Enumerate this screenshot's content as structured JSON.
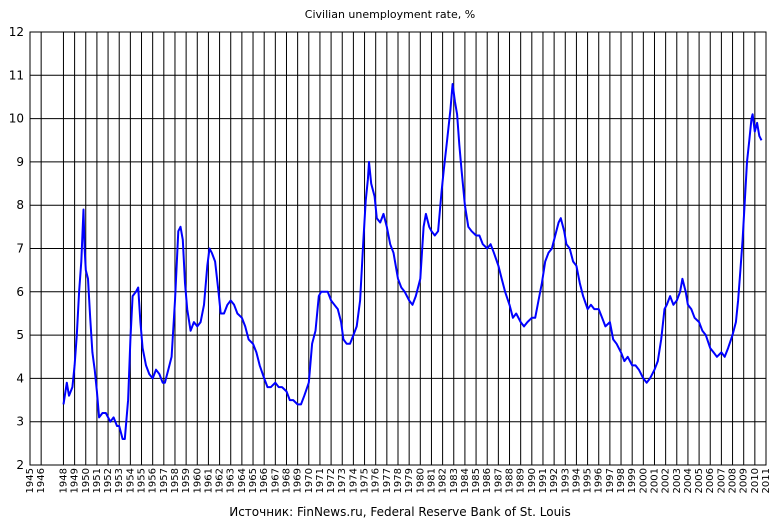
{
  "chart_data": {
    "type": "line",
    "title": "Civilian unemployment rate, %",
    "source": "Источник: FinNews.ru, Federal Reserve Bank of St. Louis",
    "xlabel": "",
    "ylabel": "",
    "x_range": [
      1945,
      2011
    ],
    "ylim": [
      2,
      12
    ],
    "y_ticks": [
      2,
      3,
      4,
      5,
      6,
      7,
      8,
      9,
      10,
      11,
      12
    ],
    "x_ticks": [
      1945,
      1946,
      1948,
      1949,
      1950,
      1951,
      1952,
      1953,
      1954,
      1955,
      1956,
      1957,
      1958,
      1959,
      1960,
      1961,
      1962,
      1963,
      1964,
      1965,
      1966,
      1967,
      1968,
      1969,
      1970,
      1971,
      1972,
      1973,
      1974,
      1975,
      1976,
      1977,
      1978,
      1979,
      1980,
      1981,
      1982,
      1983,
      1984,
      1985,
      1986,
      1987,
      1988,
      1989,
      1990,
      1991,
      1992,
      1993,
      1994,
      1995,
      1996,
      1997,
      1998,
      1999,
      2000,
      2001,
      2002,
      2003,
      2004,
      2005,
      2006,
      2007,
      2008,
      2009,
      2010,
      2011
    ],
    "x_tick_labels": [
      "1945",
      "1946",
      "1948",
      "1949",
      "1950",
      "1951",
      "1952",
      "1953",
      "1954",
      "1955",
      "1956",
      "1957",
      "1958",
      "1959",
      "1960",
      "1961",
      "1962",
      "1963",
      "1964",
      "1965",
      "1966",
      "1967",
      "1968",
      "1969",
      "1970",
      "1971",
      "1972",
      "1973",
      "1974",
      "1975",
      "1976",
      "1977",
      "1978",
      "1979",
      "1980",
      "1981",
      "1982",
      "1983",
      "1984",
      "1985",
      "1986",
      "1987",
      "1988",
      "1989",
      "1990",
      "1991",
      "1992",
      "1993",
      "1994",
      "1995",
      "1996",
      "1997",
      "1998",
      "1999",
      "2000",
      "2001",
      "2002",
      "2003",
      "2004",
      "2005",
      "2006",
      "2007",
      "2008",
      "2009",
      "2010",
      "2011"
    ],
    "grid": true,
    "line_color": "#0000ff",
    "series": [
      {
        "name": "",
        "points": [
          [
            1948.0,
            3.4
          ],
          [
            1948.3,
            3.9
          ],
          [
            1948.5,
            3.6
          ],
          [
            1948.8,
            3.8
          ],
          [
            1949.0,
            4.3
          ],
          [
            1949.2,
            5.0
          ],
          [
            1949.4,
            6.0
          ],
          [
            1949.6,
            6.7
          ],
          [
            1949.8,
            7.9
          ],
          [
            1949.9,
            7.0
          ],
          [
            1950.0,
            6.5
          ],
          [
            1950.2,
            6.3
          ],
          [
            1950.4,
            5.4
          ],
          [
            1950.6,
            4.6
          ],
          [
            1950.8,
            4.2
          ],
          [
            1951.0,
            3.7
          ],
          [
            1951.2,
            3.1
          ],
          [
            1951.5,
            3.2
          ],
          [
            1951.8,
            3.2
          ],
          [
            1952.0,
            3.1
          ],
          [
            1952.2,
            3.0
          ],
          [
            1952.5,
            3.1
          ],
          [
            1952.8,
            2.9
          ],
          [
            1953.0,
            2.9
          ],
          [
            1953.3,
            2.6
          ],
          [
            1953.5,
            2.6
          ],
          [
            1953.8,
            3.5
          ],
          [
            1954.0,
            4.9
          ],
          [
            1954.2,
            5.9
          ],
          [
            1954.5,
            6.0
          ],
          [
            1954.7,
            6.1
          ],
          [
            1954.9,
            5.3
          ],
          [
            1955.1,
            4.7
          ],
          [
            1955.4,
            4.3
          ],
          [
            1955.7,
            4.1
          ],
          [
            1956.0,
            4.0
          ],
          [
            1956.3,
            4.2
          ],
          [
            1956.6,
            4.1
          ],
          [
            1956.9,
            3.9
          ],
          [
            1957.1,
            3.9
          ],
          [
            1957.4,
            4.2
          ],
          [
            1957.7,
            4.5
          ],
          [
            1958.0,
            5.8
          ],
          [
            1958.3,
            7.4
          ],
          [
            1958.5,
            7.5
          ],
          [
            1958.7,
            7.2
          ],
          [
            1958.9,
            6.2
          ],
          [
            1959.1,
            5.6
          ],
          [
            1959.4,
            5.1
          ],
          [
            1959.7,
            5.3
          ],
          [
            1960.0,
            5.2
          ],
          [
            1960.3,
            5.3
          ],
          [
            1960.6,
            5.7
          ],
          [
            1960.9,
            6.6
          ],
          [
            1961.1,
            7.0
          ],
          [
            1961.3,
            6.9
          ],
          [
            1961.6,
            6.7
          ],
          [
            1961.9,
            6.0
          ],
          [
            1962.1,
            5.5
          ],
          [
            1962.4,
            5.5
          ],
          [
            1962.7,
            5.7
          ],
          [
            1963.0,
            5.8
          ],
          [
            1963.3,
            5.7
          ],
          [
            1963.6,
            5.5
          ],
          [
            1964.0,
            5.4
          ],
          [
            1964.3,
            5.2
          ],
          [
            1964.6,
            4.9
          ],
          [
            1965.0,
            4.8
          ],
          [
            1965.3,
            4.6
          ],
          [
            1965.6,
            4.3
          ],
          [
            1966.0,
            4.0
          ],
          [
            1966.3,
            3.8
          ],
          [
            1966.6,
            3.8
          ],
          [
            1967.0,
            3.9
          ],
          [
            1967.3,
            3.8
          ],
          [
            1967.6,
            3.8
          ],
          [
            1968.0,
            3.7
          ],
          [
            1968.3,
            3.5
          ],
          [
            1968.6,
            3.5
          ],
          [
            1969.0,
            3.4
          ],
          [
            1969.3,
            3.4
          ],
          [
            1969.6,
            3.6
          ],
          [
            1970.0,
            3.9
          ],
          [
            1970.3,
            4.8
          ],
          [
            1970.6,
            5.1
          ],
          [
            1970.9,
            5.9
          ],
          [
            1971.1,
            6.0
          ],
          [
            1971.4,
            6.0
          ],
          [
            1971.7,
            6.0
          ],
          [
            1972.0,
            5.8
          ],
          [
            1972.3,
            5.7
          ],
          [
            1972.6,
            5.6
          ],
          [
            1972.9,
            5.3
          ],
          [
            1973.1,
            4.9
          ],
          [
            1973.4,
            4.8
          ],
          [
            1973.7,
            4.8
          ],
          [
            1974.0,
            5.0
          ],
          [
            1974.3,
            5.2
          ],
          [
            1974.6,
            5.8
          ],
          [
            1974.9,
            7.2
          ],
          [
            1975.1,
            8.1
          ],
          [
            1975.3,
            8.6
          ],
          [
            1975.4,
            9.0
          ],
          [
            1975.6,
            8.5
          ],
          [
            1975.9,
            8.2
          ],
          [
            1976.1,
            7.7
          ],
          [
            1976.4,
            7.6
          ],
          [
            1976.7,
            7.8
          ],
          [
            1977.0,
            7.5
          ],
          [
            1977.3,
            7.1
          ],
          [
            1977.6,
            6.9
          ],
          [
            1978.0,
            6.3
          ],
          [
            1978.3,
            6.1
          ],
          [
            1978.6,
            6.0
          ],
          [
            1979.0,
            5.8
          ],
          [
            1979.3,
            5.7
          ],
          [
            1979.6,
            5.9
          ],
          [
            1980.0,
            6.3
          ],
          [
            1980.3,
            7.5
          ],
          [
            1980.5,
            7.8
          ],
          [
            1980.8,
            7.5
          ],
          [
            1981.0,
            7.4
          ],
          [
            1981.3,
            7.3
          ],
          [
            1981.6,
            7.4
          ],
          [
            1981.9,
            8.3
          ],
          [
            1982.1,
            8.8
          ],
          [
            1982.4,
            9.5
          ],
          [
            1982.7,
            10.2
          ],
          [
            1982.9,
            10.8
          ],
          [
            1983.1,
            10.4
          ],
          [
            1983.3,
            10.1
          ],
          [
            1983.5,
            9.4
          ],
          [
            1983.7,
            8.8
          ],
          [
            1984.0,
            8.0
          ],
          [
            1984.3,
            7.5
          ],
          [
            1984.6,
            7.4
          ],
          [
            1985.0,
            7.3
          ],
          [
            1985.3,
            7.3
          ],
          [
            1985.6,
            7.1
          ],
          [
            1986.0,
            7.0
          ],
          [
            1986.3,
            7.1
          ],
          [
            1986.6,
            6.9
          ],
          [
            1987.0,
            6.6
          ],
          [
            1987.3,
            6.3
          ],
          [
            1987.6,
            6.0
          ],
          [
            1988.0,
            5.7
          ],
          [
            1988.3,
            5.4
          ],
          [
            1988.6,
            5.5
          ],
          [
            1989.0,
            5.3
          ],
          [
            1989.3,
            5.2
          ],
          [
            1989.6,
            5.3
          ],
          [
            1990.0,
            5.4
          ],
          [
            1990.3,
            5.4
          ],
          [
            1990.6,
            5.8
          ],
          [
            1990.9,
            6.2
          ],
          [
            1991.2,
            6.7
          ],
          [
            1991.5,
            6.9
          ],
          [
            1991.8,
            7.0
          ],
          [
            1992.1,
            7.3
          ],
          [
            1992.4,
            7.6
          ],
          [
            1992.6,
            7.7
          ],
          [
            1992.9,
            7.4
          ],
          [
            1993.1,
            7.1
          ],
          [
            1993.4,
            7.0
          ],
          [
            1993.7,
            6.7
          ],
          [
            1994.0,
            6.6
          ],
          [
            1994.3,
            6.2
          ],
          [
            1994.6,
            5.9
          ],
          [
            1995.0,
            5.6
          ],
          [
            1995.3,
            5.7
          ],
          [
            1995.6,
            5.6
          ],
          [
            1996.0,
            5.6
          ],
          [
            1996.3,
            5.4
          ],
          [
            1996.6,
            5.2
          ],
          [
            1997.0,
            5.3
          ],
          [
            1997.3,
            4.9
          ],
          [
            1997.6,
            4.8
          ],
          [
            1998.0,
            4.6
          ],
          [
            1998.3,
            4.4
          ],
          [
            1998.6,
            4.5
          ],
          [
            1999.0,
            4.3
          ],
          [
            1999.3,
            4.3
          ],
          [
            1999.6,
            4.2
          ],
          [
            2000.0,
            4.0
          ],
          [
            2000.3,
            3.9
          ],
          [
            2000.6,
            4.0
          ],
          [
            2001.0,
            4.2
          ],
          [
            2001.3,
            4.4
          ],
          [
            2001.6,
            4.9
          ],
          [
            2001.9,
            5.6
          ],
          [
            2002.1,
            5.7
          ],
          [
            2002.4,
            5.9
          ],
          [
            2002.7,
            5.7
          ],
          [
            2003.0,
            5.8
          ],
          [
            2003.3,
            6.0
          ],
          [
            2003.5,
            6.3
          ],
          [
            2003.8,
            6.0
          ],
          [
            2004.0,
            5.7
          ],
          [
            2004.3,
            5.6
          ],
          [
            2004.6,
            5.4
          ],
          [
            2005.0,
            5.3
          ],
          [
            2005.3,
            5.1
          ],
          [
            2005.6,
            5.0
          ],
          [
            2006.0,
            4.7
          ],
          [
            2006.3,
            4.6
          ],
          [
            2006.6,
            4.5
          ],
          [
            2007.0,
            4.6
          ],
          [
            2007.3,
            4.5
          ],
          [
            2007.6,
            4.7
          ],
          [
            2008.0,
            5.0
          ],
          [
            2008.3,
            5.3
          ],
          [
            2008.5,
            5.8
          ],
          [
            2008.7,
            6.5
          ],
          [
            2008.9,
            7.2
          ],
          [
            2009.1,
            8.1
          ],
          [
            2009.3,
            9.0
          ],
          [
            2009.5,
            9.5
          ],
          [
            2009.7,
            10.0
          ],
          [
            2009.8,
            10.1
          ],
          [
            2010.0,
            9.7
          ],
          [
            2010.2,
            9.9
          ],
          [
            2010.4,
            9.6
          ],
          [
            2010.6,
            9.5
          ]
        ]
      }
    ]
  }
}
